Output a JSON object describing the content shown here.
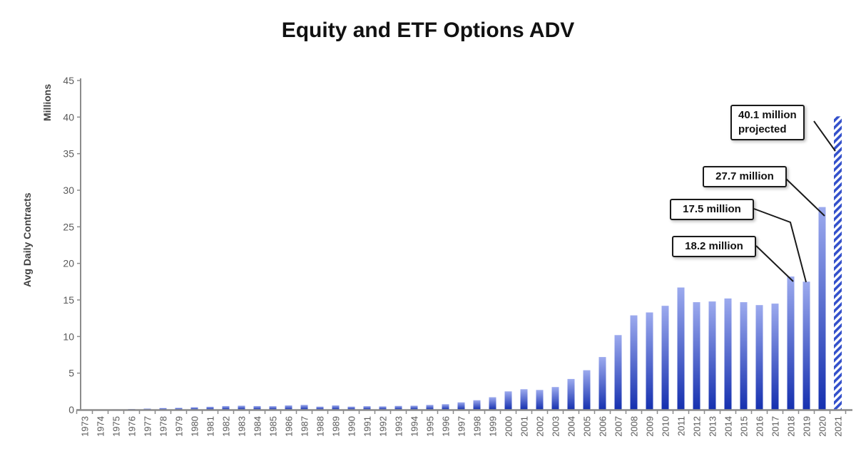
{
  "page": {
    "background": "#ffffff"
  },
  "chart_data": {
    "type": "bar",
    "title": "Equity and ETF Options ADV",
    "y_unit_label": "Millions",
    "ylabel": "Avg Daily Contracts",
    "xlabel": "",
    "ylim": [
      0,
      45
    ],
    "y_ticks": [
      0,
      5,
      10,
      15,
      20,
      25,
      30,
      35,
      40,
      45
    ],
    "grid": false,
    "legend": false,
    "bar_style": {
      "gradient_top": "#9CAAEE",
      "gradient_bottom": "#1530AF",
      "axis_color": "#8c8c8c",
      "tick_label_color": "#595959"
    },
    "projected_bar": {
      "year": 2021,
      "style": "diagonal-hatch",
      "hatch_color": "#3350CB"
    },
    "categories": [
      1973,
      1974,
      1975,
      1976,
      1977,
      1978,
      1979,
      1980,
      1981,
      1982,
      1983,
      1984,
      1985,
      1986,
      1987,
      1988,
      1989,
      1990,
      1991,
      1992,
      1993,
      1994,
      1995,
      1996,
      1997,
      1998,
      1999,
      2000,
      2001,
      2002,
      2003,
      2004,
      2005,
      2006,
      2007,
      2008,
      2009,
      2010,
      2011,
      2012,
      2013,
      2014,
      2015,
      2016,
      2017,
      2018,
      2019,
      2020,
      2021
    ],
    "values": [
      0.03,
      0.03,
      0.06,
      0.1,
      0.15,
      0.22,
      0.25,
      0.33,
      0.4,
      0.5,
      0.55,
      0.5,
      0.48,
      0.58,
      0.65,
      0.42,
      0.58,
      0.42,
      0.48,
      0.45,
      0.52,
      0.55,
      0.65,
      0.75,
      1.0,
      1.3,
      1.7,
      2.5,
      2.8,
      2.7,
      3.1,
      4.2,
      5.4,
      7.2,
      10.2,
      12.9,
      13.3,
      14.2,
      16.7,
      14.7,
      14.8,
      15.2,
      14.7,
      14.3,
      14.5,
      18.2,
      17.5,
      27.7,
      40.1
    ],
    "annotations": [
      {
        "lines": [
          "40.1 million",
          "projected"
        ],
        "value": 40.1,
        "target_year": 2021
      },
      {
        "lines": [
          "27.7 million"
        ],
        "value": 27.7,
        "target_year": 2020
      },
      {
        "lines": [
          "17.5 million"
        ],
        "value": 17.5,
        "target_year": 2019
      },
      {
        "lines": [
          "18.2 million"
        ],
        "value": 18.2,
        "target_year": 2018
      }
    ]
  }
}
